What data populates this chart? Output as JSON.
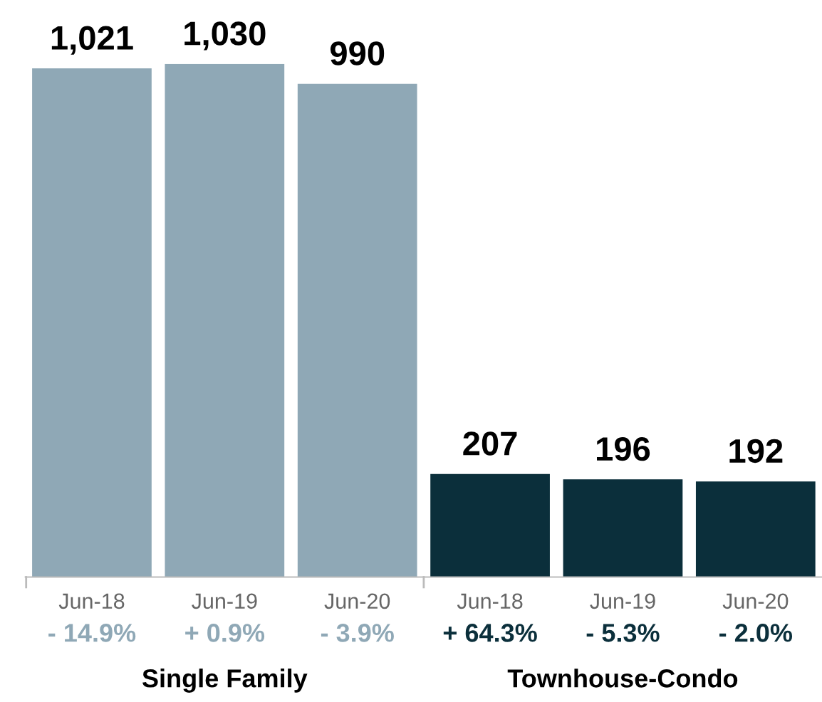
{
  "chart_data": {
    "type": "bar",
    "categories": [
      "Jun-18",
      "Jun-19",
      "Jun-20",
      "Jun-18",
      "Jun-19",
      "Jun-20"
    ],
    "series": [
      {
        "color": "#8fa8b6",
        "values": [
          1021,
          1030,
          990,
          null,
          null,
          null
        ],
        "value_labels": [
          "1,021",
          "1,030",
          "990",
          null,
          null,
          null
        ]
      },
      {
        "color": "#0b2f3b",
        "values": [
          null,
          null,
          null,
          207,
          196,
          192
        ],
        "value_labels": [
          null,
          null,
          null,
          "207",
          "196",
          "192"
        ]
      }
    ],
    "annotations": [
      "- 14.9%",
      "+ 0.9%",
      "- 3.9%",
      "+ 64.3%",
      "- 5.3%",
      "- 2.0%",
      "Single Family",
      "Townhouse-Condo"
    ],
    "grid": false,
    "legend": false
  }
}
